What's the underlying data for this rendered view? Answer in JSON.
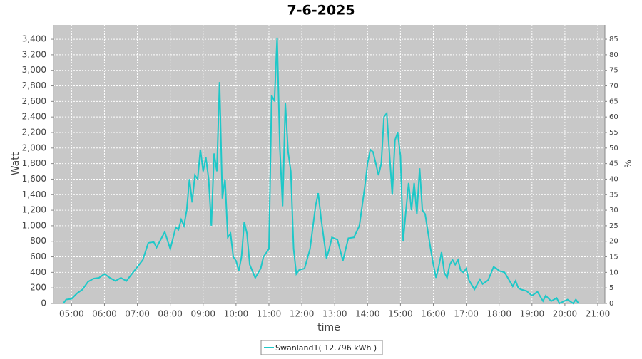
{
  "chart_data": {
    "type": "line",
    "title": "7-6-2025",
    "xlabel": "time",
    "ylabel": "Watt",
    "y2label": "%",
    "x": [
      "04:45",
      "04:50",
      "05:00",
      "05:10",
      "05:20",
      "05:30",
      "05:40",
      "05:50",
      "06:00",
      "06:10",
      "06:20",
      "06:30",
      "06:40",
      "06:50",
      "07:00",
      "07:10",
      "07:20",
      "07:30",
      "07:35",
      "07:50",
      "08:00",
      "08:10",
      "08:15",
      "08:20",
      "08:25",
      "08:30",
      "08:35",
      "08:40",
      "08:45",
      "08:50",
      "08:55",
      "09:00",
      "09:05",
      "09:10",
      "09:15",
      "09:20",
      "09:25",
      "09:30",
      "09:35",
      "09:40",
      "09:45",
      "09:50",
      "09:55",
      "10:00",
      "10:05",
      "10:10",
      "10:15",
      "10:20",
      "10:25",
      "10:35",
      "10:45",
      "10:50",
      "10:55",
      "11:00",
      "11:05",
      "11:10",
      "11:15",
      "11:20",
      "11:25",
      "11:30",
      "11:35",
      "11:40",
      "11:45",
      "11:50",
      "11:55",
      "12:05",
      "12:15",
      "12:25",
      "12:30",
      "12:35",
      "12:45",
      "12:50",
      "12:55",
      "13:05",
      "13:15",
      "13:20",
      "13:25",
      "13:35",
      "13:45",
      "13:55",
      "14:00",
      "14:05",
      "14:10",
      "14:20",
      "14:25",
      "14:30",
      "14:35",
      "14:45",
      "14:50",
      "14:55",
      "15:00",
      "15:05",
      "15:10",
      "15:15",
      "15:20",
      "15:25",
      "15:30",
      "15:35",
      "15:40",
      "15:45",
      "15:55",
      "16:00",
      "16:05",
      "16:10",
      "16:15",
      "16:20",
      "16:25",
      "16:30",
      "16:35",
      "16:40",
      "16:45",
      "16:50",
      "16:55",
      "17:00",
      "17:05",
      "17:15",
      "17:25",
      "17:30",
      "17:40",
      "17:50",
      "17:55",
      "18:00",
      "18:10",
      "18:15",
      "18:25",
      "18:30",
      "18:35",
      "18:40",
      "18:50",
      "19:00",
      "19:10",
      "19:20",
      "19:25",
      "19:35",
      "19:45",
      "19:50",
      "20:05",
      "20:15",
      "20:20",
      "20:25"
    ],
    "series": [
      {
        "name": "Swanland1( 12.796 kWh )",
        "color": "#1ec8c8",
        "values": [
          0,
          50,
          60,
          130,
          180,
          280,
          320,
          330,
          380,
          330,
          290,
          330,
          290,
          380,
          470,
          560,
          780,
          790,
          720,
          920,
          700,
          980,
          950,
          1080,
          1000,
          1200,
          1600,
          1300,
          1650,
          1600,
          1980,
          1700,
          1880,
          1600,
          1000,
          1930,
          1700,
          2850,
          1350,
          1600,
          850,
          900,
          600,
          550,
          420,
          600,
          1050,
          900,
          500,
          330,
          450,
          600,
          650,
          700,
          2680,
          2600,
          3420,
          2000,
          1250,
          2580,
          1950,
          1700,
          700,
          380,
          430,
          450,
          700,
          1250,
          1420,
          1100,
          580,
          700,
          850,
          820,
          550,
          700,
          840,
          850,
          1000,
          1500,
          1800,
          1980,
          1950,
          1650,
          1800,
          2400,
          2450,
          1400,
          2100,
          2200,
          1900,
          800,
          1200,
          1550,
          1200,
          1550,
          1150,
          1740,
          1200,
          1150,
          700,
          500,
          330,
          480,
          660,
          400,
          330,
          500,
          560,
          500,
          560,
          420,
          400,
          450,
          300,
          180,
          310,
          250,
          300,
          470,
          450,
          420,
          400,
          340,
          220,
          290,
          200,
          180,
          160,
          100,
          150,
          30,
          100,
          30,
          70,
          0,
          50,
          0,
          50,
          0
        ]
      }
    ],
    "xlim": [
      "04:27",
      "21:13"
    ],
    "xticks": [
      "05:00",
      "06:00",
      "07:00",
      "08:00",
      "09:00",
      "10:00",
      "11:00",
      "12:00",
      "13:00",
      "14:00",
      "15:00",
      "16:00",
      "17:00",
      "18:00",
      "19:00",
      "20:00",
      "21:00"
    ],
    "ylim": [
      0,
      3584
    ],
    "yticks": [
      0,
      200,
      400,
      600,
      800,
      {
        "value": 1000,
        "label": "1,000"
      },
      {
        "value": 1200,
        "label": "1,200"
      },
      {
        "value": 1400,
        "label": "1,400"
      },
      {
        "value": 1600,
        "label": "1,600"
      },
      {
        "value": 1800,
        "label": "1,800"
      },
      {
        "value": 2000,
        "label": "2,000"
      },
      {
        "value": 2200,
        "label": "2,200"
      },
      {
        "value": 2400,
        "label": "2,400"
      },
      {
        "value": 2600,
        "label": "2,600"
      },
      {
        "value": 2800,
        "label": "2,800"
      },
      {
        "value": 3000,
        "label": "3,000"
      },
      {
        "value": 3200,
        "label": "3,200"
      },
      {
        "value": 3400,
        "label": "3,400"
      }
    ],
    "y2lim": [
      0,
      89.6
    ],
    "y2ticks": [
      0,
      5,
      10,
      15,
      20,
      25,
      30,
      35,
      40,
      45,
      50,
      55,
      60,
      65,
      70,
      75,
      80,
      85
    ],
    "grid": true,
    "legend": "bottom"
  }
}
